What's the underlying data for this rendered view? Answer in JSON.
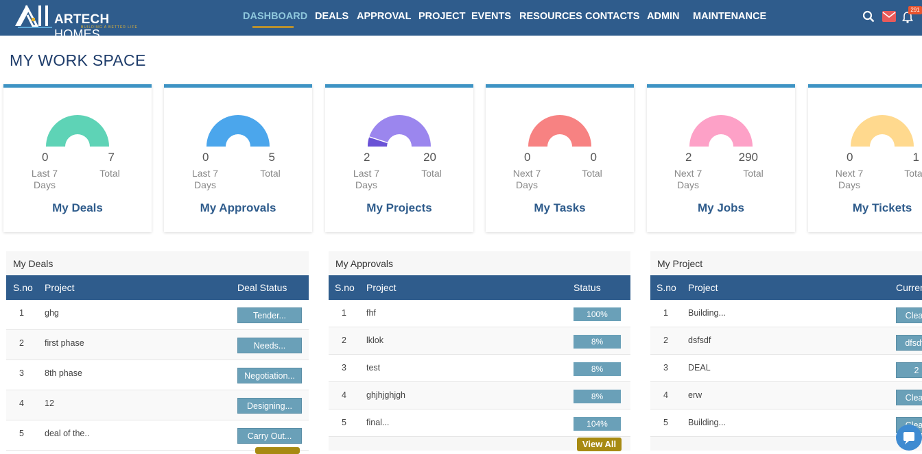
{
  "header": {
    "logo_brand": "ARTECH",
    "logo_brand_suffix": "HOMES",
    "logo_tagline": "BUILDING A BETTER LIFE",
    "nav": [
      "DASHBOARD",
      "DEALS",
      "APPROVAL",
      "PROJECT",
      "EVENTS",
      "RESOURCES",
      "CONTACTS",
      "ADMIN",
      "MAINTENANCE"
    ],
    "active_nav": "DASHBOARD",
    "notification_count": "291",
    "icons": [
      "search-icon",
      "mail-icon",
      "bell-icon"
    ]
  },
  "page": {
    "title": "MY WORK SPACE"
  },
  "cards": [
    {
      "title": "My Deals",
      "left_value": "0",
      "left_label": "Last 7 Days",
      "right_value": "7",
      "right_label": "Total",
      "fill": 0.0,
      "color": "#5ed3b6"
    },
    {
      "title": "My Approvals",
      "left_value": "0",
      "left_label": "Last 7 Days",
      "right_value": "5",
      "right_label": "Total",
      "fill": 0.0,
      "color": "#4ba6ec"
    },
    {
      "title": "My Projects",
      "left_value": "2",
      "left_label": "Last 7 Days",
      "right_value": "20",
      "right_label": "Total",
      "fill": 0.1,
      "color": "#9b86ee",
      "fill_color": "#6a52d6"
    },
    {
      "title": "My Tasks",
      "left_value": "0",
      "left_label": "Next 7 Days",
      "right_value": "0",
      "right_label": "Total",
      "fill": 0.0,
      "color": "#f78282"
    },
    {
      "title": "My Jobs",
      "left_value": "2",
      "left_label": "Next 7 Days",
      "right_value": "290",
      "right_label": "Total",
      "fill": 0.0,
      "color": "#fda1c7"
    },
    {
      "title": "My Tickets",
      "left_value": "0",
      "left_label": "Next 7 Days",
      "right_value": "1",
      "right_label": "Total",
      "fill": 0.0,
      "color": "#ffd98e"
    }
  ],
  "deals_panel": {
    "title": "My Deals",
    "columns": [
      "S.no",
      "Project",
      "Deal Status"
    ],
    "rows": [
      {
        "sno": "1",
        "project": "ghg",
        "status": "Tender..."
      },
      {
        "sno": "2",
        "project": "first phase",
        "status": "Needs..."
      },
      {
        "sno": "3",
        "project": "8th phase",
        "status": "Negotiation..."
      },
      {
        "sno": "4",
        "project": "12",
        "status": "Designing..."
      },
      {
        "sno": "5",
        "project": "deal of the..",
        "status": "Carry Out..."
      }
    ]
  },
  "approvals_panel": {
    "title": "My Approvals",
    "columns": [
      "S.no",
      "Project",
      "Status"
    ],
    "rows": [
      {
        "sno": "1",
        "project": "fhf",
        "status": "100%"
      },
      {
        "sno": "2",
        "project": "lklok",
        "status": "8%"
      },
      {
        "sno": "3",
        "project": "test",
        "status": "8%"
      },
      {
        "sno": "4",
        "project": "ghjhjghjgh",
        "status": "8%"
      },
      {
        "sno": "5",
        "project": "final...",
        "status": "104%"
      }
    ],
    "view_all": "View All"
  },
  "projects_panel": {
    "title": "My Project",
    "columns": [
      "S.no",
      "Project",
      "Curren"
    ],
    "rows": [
      {
        "sno": "1",
        "project": "Building...",
        "status": "Cleari"
      },
      {
        "sno": "2",
        "project": "dsfsdf",
        "status": "dfsdfs"
      },
      {
        "sno": "3",
        "project": "DEAL",
        "status": "2"
      },
      {
        "sno": "4",
        "project": "erw",
        "status": "Cleari"
      },
      {
        "sno": "5",
        "project": "Building...",
        "status": "Cleari"
      }
    ]
  }
}
